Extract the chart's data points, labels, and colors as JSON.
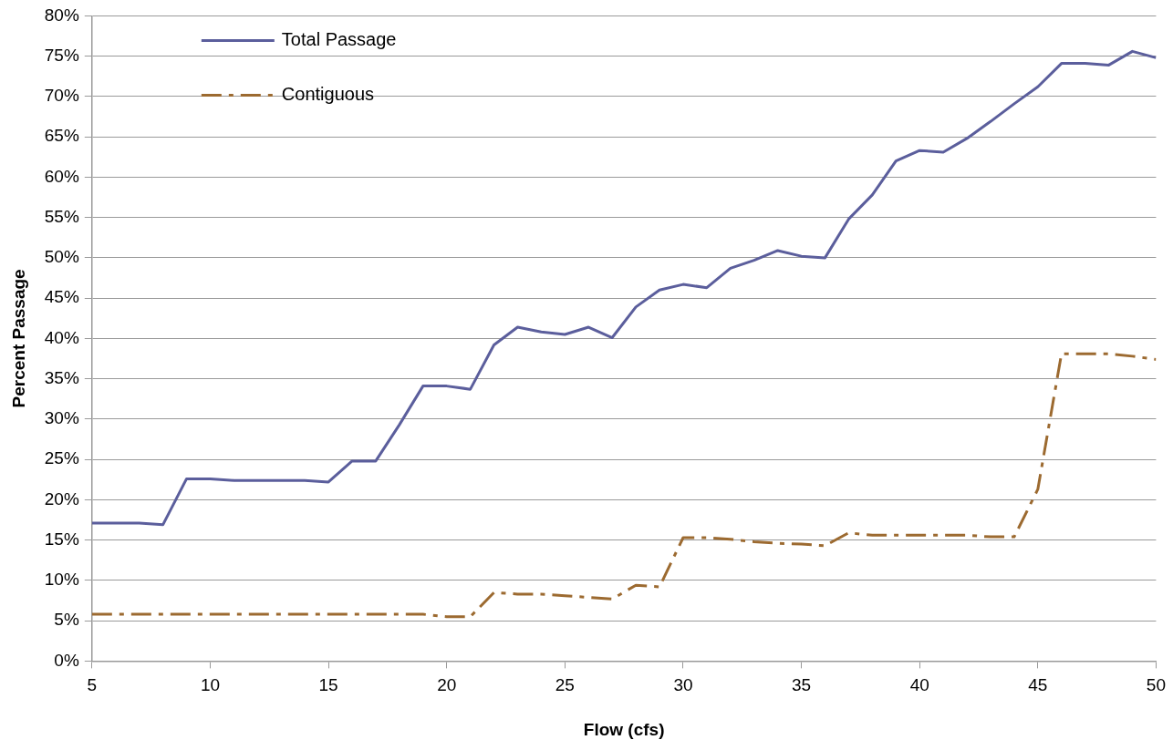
{
  "chart_data": {
    "type": "line",
    "xlabel": "Flow (cfs)",
    "ylabel": "Percent Passage",
    "x": [
      5,
      6,
      7,
      8,
      9,
      10,
      11,
      12,
      13,
      14,
      15,
      16,
      17,
      18,
      19,
      20,
      21,
      22,
      23,
      24,
      25,
      26,
      27,
      28,
      29,
      30,
      31,
      32,
      33,
      34,
      35,
      36,
      37,
      38,
      39,
      40,
      41,
      42,
      43,
      44,
      45,
      46,
      47,
      48,
      49,
      50
    ],
    "series": [
      {
        "name": "Total Passage",
        "color": "#5b5e9c",
        "line_style": "solid",
        "values": [
          17.1,
          17.1,
          17.1,
          16.9,
          22.6,
          22.6,
          22.4,
          22.4,
          22.4,
          22.4,
          22.2,
          24.8,
          24.8,
          29.3,
          34.1,
          34.1,
          33.7,
          39.2,
          41.4,
          40.8,
          40.5,
          41.4,
          40.1,
          43.9,
          46.0,
          46.7,
          46.3,
          48.7,
          49.7,
          50.9,
          50.2,
          50.0,
          54.8,
          57.8,
          62.0,
          63.3,
          63.1,
          64.8,
          66.9,
          69.1,
          71.2,
          74.1,
          74.1,
          73.9,
          75.6,
          74.8
        ]
      },
      {
        "name": "Contiguous",
        "color": "#9c6a30",
        "line_style": "dashed",
        "values": [
          5.8,
          5.8,
          5.8,
          5.8,
          5.8,
          5.8,
          5.8,
          5.8,
          5.8,
          5.8,
          5.8,
          5.8,
          5.8,
          5.8,
          5.8,
          5.5,
          5.5,
          8.5,
          8.3,
          8.3,
          8.1,
          7.9,
          7.7,
          9.4,
          9.2,
          15.3,
          15.3,
          15.1,
          14.8,
          14.6,
          14.5,
          14.3,
          15.9,
          15.6,
          15.6,
          15.6,
          15.6,
          15.6,
          15.4,
          15.4,
          21.3,
          38.1,
          38.1,
          38.1,
          37.8,
          37.4
        ]
      }
    ],
    "xlim": [
      5,
      50
    ],
    "xticks": [
      5,
      10,
      15,
      20,
      25,
      30,
      35,
      40,
      45,
      50
    ],
    "ylim": [
      0,
      80
    ],
    "yticks": [
      {
        "value": 0,
        "label": "0%"
      },
      {
        "value": 5,
        "label": "5%"
      },
      {
        "value": 10,
        "label": "10%"
      },
      {
        "value": 15,
        "label": "15%"
      },
      {
        "value": 20,
        "label": "20%"
      },
      {
        "value": 25,
        "label": "25%"
      },
      {
        "value": 30,
        "label": "30%"
      },
      {
        "value": 35,
        "label": "35%"
      },
      {
        "value": 40,
        "label": "40%"
      },
      {
        "value": 45,
        "label": "45%"
      },
      {
        "value": 50,
        "label": "50%"
      },
      {
        "value": 55,
        "label": "55%"
      },
      {
        "value": 60,
        "label": "60%"
      },
      {
        "value": 65,
        "label": "65%"
      },
      {
        "value": 70,
        "label": "70%"
      },
      {
        "value": 75,
        "label": "75%"
      },
      {
        "value": 80,
        "label": "80%"
      }
    ],
    "grid": "y",
    "legend": "top left",
    "marker": "none"
  }
}
